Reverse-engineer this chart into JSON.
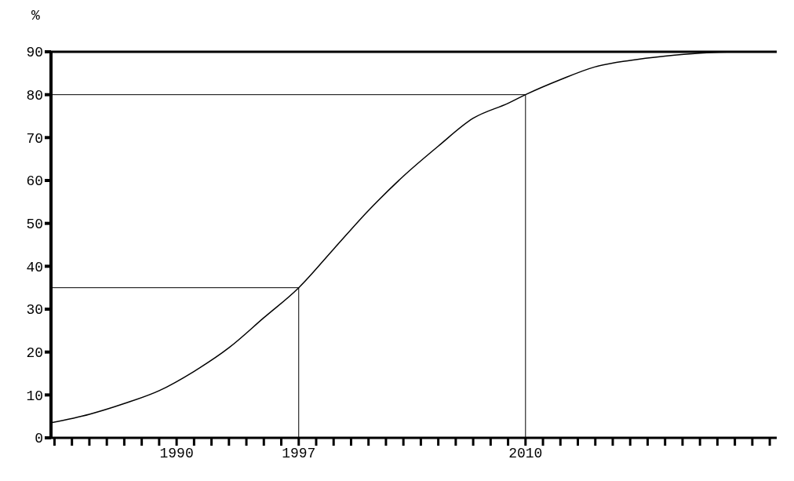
{
  "chart_data": {
    "type": "line",
    "ylabel": "%",
    "x": [
      1982.8,
      1985,
      1987,
      1989,
      1991,
      1993,
      1995,
      1997,
      1999,
      2001,
      2003,
      2005,
      2007,
      2009,
      2010,
      2012,
      2014,
      2016,
      2018,
      2020,
      2022,
      2024.4
    ],
    "series": [
      {
        "color": "#000000",
        "values": [
          3.5,
          5.5,
          8,
          11,
          15.5,
          21,
          28,
          35,
          44,
          53,
          61,
          68,
          74.5,
          78,
          80,
          83.5,
          86.5,
          88,
          89,
          89.7,
          90,
          90
        ]
      }
    ],
    "xlim": [
      1982.8,
      2024.4
    ],
    "xticks": [
      {
        "value": 1983,
        "label": null
      },
      {
        "value": 1984,
        "label": null
      },
      {
        "value": 1985,
        "label": null
      },
      {
        "value": 1986,
        "label": null
      },
      {
        "value": 1987,
        "label": null
      },
      {
        "value": 1988,
        "label": null
      },
      {
        "value": 1989,
        "label": null
      },
      1990,
      {
        "value": 1991,
        "label": null
      },
      {
        "value": 1992,
        "label": null
      },
      {
        "value": 1993,
        "label": null
      },
      {
        "value": 1994,
        "label": null
      },
      {
        "value": 1995,
        "label": null
      },
      {
        "value": 1996,
        "label": null
      },
      1997,
      {
        "value": 1998,
        "label": null
      },
      {
        "value": 1999,
        "label": null
      },
      {
        "value": 2000,
        "label": null
      },
      {
        "value": 2001,
        "label": null
      },
      {
        "value": 2002,
        "label": null
      },
      {
        "value": 2003,
        "label": null
      },
      {
        "value": 2004,
        "label": null
      },
      {
        "value": 2005,
        "label": null
      },
      {
        "value": 2006,
        "label": null
      },
      {
        "value": 2007,
        "label": null
      },
      {
        "value": 2008,
        "label": null
      },
      {
        "value": 2009,
        "label": null
      },
      2010,
      {
        "value": 2011,
        "label": null
      },
      {
        "value": 2012,
        "label": null
      },
      {
        "value": 2013,
        "label": null
      },
      {
        "value": 2014,
        "label": null
      },
      {
        "value": 2015,
        "label": null
      },
      {
        "value": 2016,
        "label": null
      },
      {
        "value": 2017,
        "label": null
      },
      {
        "value": 2018,
        "label": null
      },
      {
        "value": 2019,
        "label": null
      },
      {
        "value": 2020,
        "label": null
      },
      {
        "value": 2021,
        "label": null
      },
      {
        "value": 2022,
        "label": null
      },
      {
        "value": 2023,
        "label": null
      },
      {
        "value": 2024,
        "label": null
      }
    ],
    "ylim": [
      0,
      90
    ],
    "yticks": [
      0,
      10,
      20,
      30,
      40,
      50,
      60,
      70,
      80,
      90
    ],
    "ref_lines": [
      {
        "axis": "y",
        "value": 35,
        "color": "#000000"
      },
      {
        "axis": "y",
        "value": 80,
        "color": "#000000"
      },
      {
        "axis": "x",
        "value": 1997,
        "color": "#000000"
      },
      {
        "axis": "x",
        "value": 2010,
        "color": "#000000"
      }
    ],
    "marker": "none",
    "line_style": "solid"
  }
}
